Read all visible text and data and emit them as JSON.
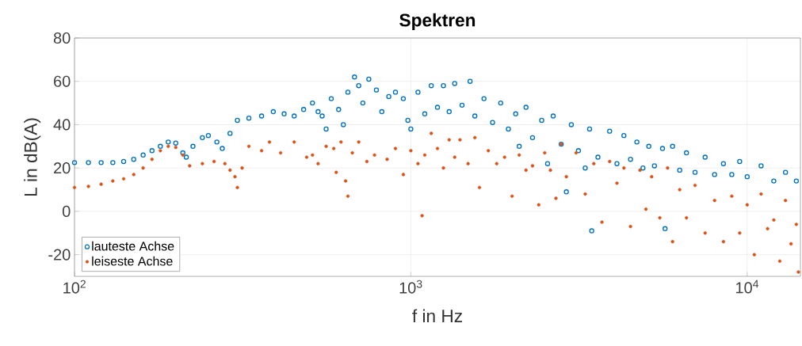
{
  "chart_data": {
    "type": "scatter",
    "title": "Spektren",
    "xlabel": "f in Hz",
    "ylabel": "L in dB(A)",
    "log": "x",
    "grid": true,
    "legend": "bottom left",
    "marker": "circle",
    "xlim": [
      100,
      14400
    ],
    "ylim": [
      -30,
      80
    ],
    "xticks": [
      {
        "value": 100,
        "label": "10$^{2}$"
      },
      {
        "value": 1000,
        "label": "10$^{3}$"
      },
      {
        "value": 10000,
        "label": "10$^{4}$"
      }
    ],
    "yticks": [
      -20,
      0,
      20,
      40,
      60,
      80
    ],
    "series": [
      {
        "name": "lauteste Achse",
        "color": "#0072bd",
        "x": [
          100,
          110,
          120,
          130,
          140,
          150,
          160,
          170,
          180,
          190,
          200,
          210,
          215,
          225,
          240,
          250,
          265,
          275,
          290,
          305,
          330,
          360,
          390,
          420,
          450,
          480,
          510,
          530,
          545,
          560,
          580,
          610,
          630,
          650,
          680,
          700,
          720,
          750,
          790,
          820,
          860,
          900,
          950,
          980,
          1000,
          1050,
          1100,
          1150,
          1200,
          1250,
          1300,
          1350,
          1420,
          1500,
          1550,
          1650,
          1750,
          1850,
          1950,
          2050,
          2100,
          2200,
          2300,
          2450,
          2550,
          2650,
          2800,
          2900,
          3000,
          3150,
          3300,
          3400,
          3450,
          3600,
          3900,
          4100,
          4300,
          4500,
          4700,
          4900,
          5100,
          5300,
          5600,
          5700,
          6000,
          6300,
          6600,
          7000,
          7500,
          8000,
          8500,
          9000,
          9500,
          10000,
          11000,
          12000,
          13000,
          14000
        ],
        "values": [
          22.5,
          22.5,
          22.5,
          22.5,
          23,
          24,
          26,
          28,
          30,
          32,
          31.5,
          27,
          25,
          30,
          34,
          35,
          32,
          29,
          36,
          42,
          43,
          44,
          46,
          45,
          44,
          47,
          50,
          46,
          44,
          38,
          52,
          47,
          40,
          55,
          62,
          58,
          50,
          61,
          56,
          46,
          53,
          55,
          52,
          42,
          38,
          55,
          45,
          58,
          48,
          58,
          46,
          59,
          49,
          60,
          44,
          52,
          41,
          50,
          38,
          45,
          30,
          48,
          34,
          42,
          22,
          44,
          31,
          9,
          40,
          28,
          20,
          38,
          -9,
          25,
          37,
          22,
          35,
          24,
          32,
          20,
          30,
          21,
          29,
          -8,
          30,
          19,
          27,
          18,
          25,
          17,
          22,
          17,
          23,
          16,
          21,
          14,
          18,
          14
        ]
      },
      {
        "name": "leiseste Achse",
        "color": "#d95319",
        "x": [
          100,
          110,
          120,
          130,
          140,
          150,
          160,
          170,
          180,
          190,
          200,
          210,
          220,
          240,
          260,
          280,
          290,
          300,
          305,
          315,
          330,
          360,
          380,
          410,
          450,
          490,
          510,
          530,
          560,
          590,
          600,
          620,
          640,
          650,
          670,
          700,
          740,
          780,
          850,
          900,
          950,
          1000,
          1050,
          1080,
          1100,
          1150,
          1200,
          1250,
          1300,
          1350,
          1400,
          1480,
          1550,
          1600,
          1700,
          1800,
          1900,
          2000,
          2100,
          2200,
          2300,
          2400,
          2500,
          2600,
          2700,
          2800,
          2900,
          3100,
          3300,
          3500,
          3700,
          3900,
          4100,
          4300,
          4500,
          4800,
          5000,
          5200,
          5500,
          5800,
          6000,
          6300,
          6600,
          7000,
          7500,
          8000,
          8500,
          9000,
          9500,
          10000,
          10500,
          11000,
          11500,
          12000,
          12500,
          13000,
          13500,
          14000,
          14200
        ],
        "values": [
          11,
          11.5,
          12.5,
          14,
          15,
          17,
          20,
          24,
          28,
          30,
          29.5,
          26,
          21,
          22,
          23,
          22,
          19,
          16,
          11,
          20,
          30,
          28,
          32,
          27,
          32,
          25,
          26,
          22,
          30,
          29,
          18,
          32,
          14,
          7,
          27,
          32,
          23,
          26,
          24,
          29,
          17,
          28,
          22,
          -2,
          26,
          36,
          29,
          20,
          33,
          25,
          33,
          22,
          34,
          11,
          28,
          22,
          25,
          7,
          26,
          19,
          21,
          3,
          27,
          19,
          6,
          31,
          16,
          27,
          8,
          22,
          -5,
          23,
          13,
          20,
          -7,
          19,
          1,
          16,
          -3,
          20,
          -14,
          10,
          -3,
          12,
          -10,
          5,
          -14,
          7,
          -10,
          3,
          -20,
          8,
          -8,
          -4,
          -23,
          5,
          -15,
          -6,
          -28
        ]
      }
    ]
  }
}
